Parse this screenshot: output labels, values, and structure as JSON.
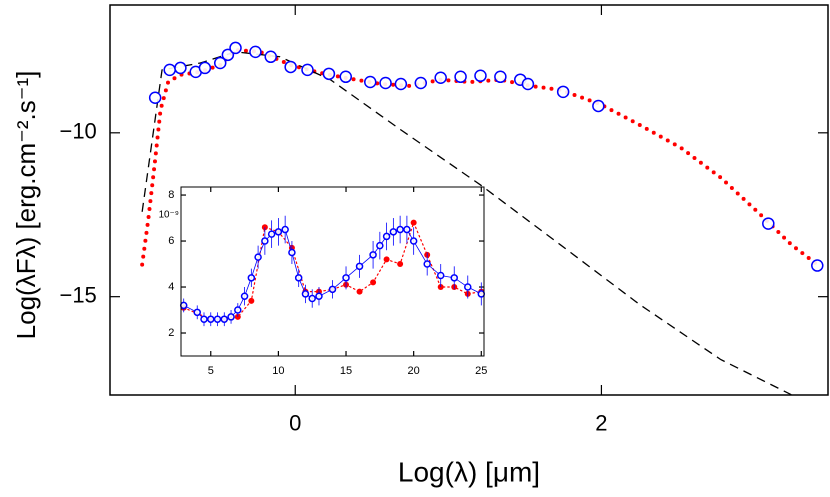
{
  "chart_data": [
    {
      "type": "line",
      "x_label": "Log(λ) [μm]",
      "y_label": "Log(λFλ) [erg.cm⁻².s⁻¹]",
      "xlim": [
        -1.21,
        3.48
      ],
      "xticks": [
        0,
        2
      ],
      "ylim": [
        -18,
        -6.1
      ],
      "yticks": [
        {
          "value": -10,
          "label": "−10"
        },
        {
          "value": -15,
          "label": "−15"
        }
      ],
      "series": [
        {
          "color": "#ff0000",
          "line": "dotted",
          "x": [
            -1.0,
            -0.96,
            -0.915,
            -0.88,
            -0.83,
            -0.75,
            -0.62,
            -0.49,
            -0.39,
            -0.23,
            -0.03,
            0.16,
            0.36,
            0.56,
            0.75,
            0.95,
            1.14,
            1.34,
            1.54,
            1.73,
            1.99,
            2.25,
            2.52,
            2.78,
            3.04,
            3.24,
            3.41
          ],
          "values": [
            -14.02,
            -12.65,
            -10.82,
            -9.3,
            -8.45,
            -8.23,
            -8.14,
            -7.93,
            -7.47,
            -7.53,
            -7.93,
            -8.17,
            -8.35,
            -8.51,
            -8.57,
            -8.38,
            -8.45,
            -8.38,
            -8.57,
            -8.69,
            -9.12,
            -9.76,
            -10.46,
            -11.37,
            -12.5,
            -13.41,
            -14.02
          ]
        },
        {
          "color": "#000000",
          "line": "dashed",
          "x": [
            -1.0,
            -0.87,
            -0.62,
            -0.39,
            -0.1,
            0.23,
            0.69,
            1.21,
            1.73,
            2.25,
            2.78,
            3.24
          ],
          "values": [
            -12.41,
            -8.08,
            -7.87,
            -7.53,
            -7.68,
            -8.38,
            -9.91,
            -11.59,
            -13.41,
            -15.24,
            -16.92,
            -17.99
          ]
        },
        {
          "color": "#0000ff",
          "marker": "open",
          "x": [
            -0.915,
            -0.82,
            -0.75,
            -0.65,
            -0.59,
            -0.49,
            -0.44,
            -0.39,
            -0.26,
            -0.16,
            -0.03,
            0.08,
            0.22,
            0.33,
            0.49,
            0.59,
            0.69,
            0.82,
            0.95,
            1.08,
            1.21,
            1.34,
            1.47,
            1.52,
            1.75,
            1.98,
            3.09,
            3.41
          ],
          "values": [
            -8.93,
            -8.08,
            -8.02,
            -8.14,
            -8.02,
            -7.87,
            -7.62,
            -7.41,
            -7.53,
            -7.68,
            -7.99,
            -8.08,
            -8.2,
            -8.29,
            -8.45,
            -8.48,
            -8.51,
            -8.48,
            -8.32,
            -8.29,
            -8.26,
            -8.29,
            -8.38,
            -8.51,
            -8.75,
            -9.18,
            -12.77,
            -14.05
          ]
        }
      ]
    },
    {
      "type": "errorbar",
      "annotation": "10⁻⁹",
      "xlim": [
        2.8,
        25.2
      ],
      "xticks": [
        5,
        10,
        15,
        20,
        25
      ],
      "ylim": [
        1,
        8.35
      ],
      "yticks": [
        2,
        4,
        6,
        8
      ],
      "series": [
        {
          "color": "#ff0000",
          "line": "dotted",
          "marker": "filled",
          "x": [
            3,
            5,
            6,
            7,
            8,
            9,
            10,
            11,
            12,
            13,
            14,
            15,
            16,
            17,
            18,
            19,
            20,
            21,
            22,
            23,
            24,
            25
          ],
          "values": [
            3.1,
            2.6,
            2.6,
            2.7,
            3.4,
            6.6,
            6.4,
            5.7,
            3.8,
            3.8,
            3.9,
            4.1,
            3.8,
            4.2,
            5.2,
            5.0,
            6.8,
            5.4,
            4.0,
            4.0,
            3.7,
            3.8
          ]
        },
        {
          "color": "#0000ff",
          "line": "solid",
          "marker": "open",
          "x": [
            3,
            4,
            4.5,
            5,
            5.5,
            6,
            6.5,
            7,
            7.5,
            8,
            8.5,
            9,
            9.5,
            10,
            10.5,
            11,
            11.5,
            12,
            12.5,
            13,
            14,
            15,
            16,
            17,
            17.5,
            18,
            18.5,
            19,
            19.5,
            20,
            21,
            22,
            23,
            24,
            25
          ],
          "values": [
            3.2,
            2.9,
            2.6,
            2.6,
            2.6,
            2.6,
            2.7,
            3.0,
            3.6,
            4.4,
            5.3,
            6.0,
            6.3,
            6.4,
            6.5,
            5.5,
            4.4,
            3.7,
            3.5,
            3.6,
            3.9,
            4.4,
            4.9,
            5.4,
            5.8,
            6.2,
            6.4,
            6.5,
            6.5,
            6.0,
            5.0,
            4.5,
            4.4,
            4.0,
            3.7
          ],
          "errors": [
            0.3,
            0.3,
            0.3,
            0.3,
            0.3,
            0.3,
            0.3,
            0.3,
            0.4,
            0.4,
            0.5,
            0.6,
            0.6,
            0.6,
            0.6,
            0.5,
            0.4,
            0.4,
            0.4,
            0.4,
            0.4,
            0.5,
            0.5,
            0.6,
            0.6,
            0.6,
            0.6,
            0.6,
            0.6,
            0.6,
            0.5,
            0.5,
            0.5,
            0.5,
            0.5
          ]
        }
      ]
    }
  ]
}
